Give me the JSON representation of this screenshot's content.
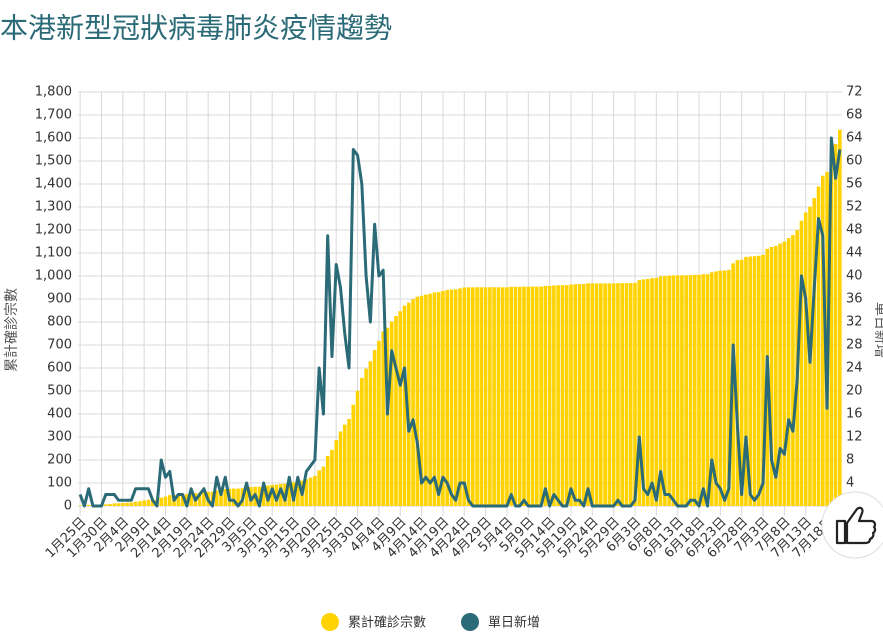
{
  "chart_data": {
    "type": "bar",
    "title": "本港新型冠狀病毒肺炎疫情趨勢",
    "ylabel": "累計確診宗數",
    "y2label": "單日新增",
    "grid": true,
    "legend": "bottom",
    "categories": [
      "1月25日",
      null,
      null,
      null,
      null,
      "1月30日",
      null,
      null,
      null,
      null,
      "2月4日",
      null,
      null,
      null,
      null,
      "2月9日",
      null,
      null,
      null,
      null,
      "2月14日",
      null,
      null,
      null,
      null,
      "2月19日",
      null,
      null,
      null,
      null,
      "2月24日",
      null,
      null,
      null,
      null,
      "2月29日",
      null,
      null,
      null,
      null,
      "3月5日",
      null,
      null,
      null,
      null,
      "3月10日",
      null,
      null,
      null,
      null,
      "3月15日",
      null,
      null,
      null,
      null,
      "3月20日",
      null,
      null,
      null,
      null,
      "3月25日",
      null,
      null,
      null,
      null,
      "3月30日",
      null,
      null,
      null,
      null,
      "4月4日",
      null,
      null,
      null,
      null,
      "4月9日",
      null,
      null,
      null,
      null,
      "4月14日",
      null,
      null,
      null,
      null,
      "4月19日",
      null,
      null,
      null,
      null,
      "4月24日",
      null,
      null,
      null,
      null,
      "4月29日",
      null,
      null,
      null,
      null,
      "5月4日",
      null,
      null,
      null,
      null,
      "5月9日",
      null,
      null,
      null,
      null,
      "5月14日",
      null,
      null,
      null,
      null,
      "5月19日",
      null,
      null,
      null,
      null,
      "5月24日",
      null,
      null,
      null,
      null,
      "5月29日",
      null,
      null,
      null,
      null,
      "6月3日",
      null,
      null,
      null,
      null,
      "6月8日",
      null,
      null,
      null,
      null,
      "6月13日",
      null,
      null,
      null,
      null,
      "6月18日",
      null,
      null,
      null,
      null,
      "6月23日",
      null,
      null,
      null,
      null,
      "6月28日",
      null,
      null,
      null,
      null,
      "7月3日",
      null,
      null,
      null,
      null,
      "7月8日",
      null,
      null,
      null,
      null,
      "7月13日",
      null,
      null,
      null,
      null,
      "7月18日",
      null,
      null,
      null
    ],
    "ylim": [
      0,
      1800
    ],
    "yticks": [
      0,
      100,
      200,
      300,
      400,
      500,
      600,
      700,
      800,
      900,
      {
        "value": 1000,
        "label": "1,000"
      },
      {
        "value": 1100,
        "label": "1,100"
      },
      {
        "value": 1200,
        "label": "1,200"
      },
      {
        "value": 1300,
        "label": "1,300"
      },
      {
        "value": 1400,
        "label": "1,400"
      },
      {
        "value": 1500,
        "label": "1,500"
      },
      {
        "value": 1600,
        "label": "1,600"
      },
      {
        "value": 1700,
        "label": "1,700"
      },
      {
        "value": 1800,
        "label": "1,800"
      }
    ],
    "y2lim": [
      0,
      72
    ],
    "y2ticks": [
      4,
      8,
      12,
      16,
      20,
      24,
      28,
      32,
      36,
      40,
      44,
      48,
      52,
      56,
      60,
      64,
      68,
      72
    ],
    "series": [
      {
        "name": "累計確診宗數",
        "type": "bar",
        "color": "#FFD200",
        "values": [
          2,
          2,
          5,
          5,
          5,
          5,
          7,
          9,
          11,
          12,
          13,
          14,
          15,
          18,
          21,
          24,
          27,
          28,
          28,
          36,
          41,
          47,
          48,
          50,
          52,
          52,
          55,
          56,
          58,
          61,
          62,
          62,
          67,
          69,
          74,
          75,
          76,
          76,
          77,
          81,
          82,
          84,
          84,
          88,
          89,
          92,
          93,
          96,
          97,
          102,
          103,
          108,
          110,
          116,
          123,
          131,
          155,
          171,
          218,
          244,
          286,
          324,
          354,
          378,
          440,
          501,
          557,
          597,
          629,
          678,
          718,
          759,
          775,
          802,
          826,
          847,
          871,
          884,
          899,
          910,
          914,
          919,
          923,
          928,
          930,
          935,
          939,
          941,
          942,
          946,
          950,
          951,
          951,
          951,
          951,
          951,
          951,
          951,
          951,
          951,
          951,
          953,
          953,
          953,
          954,
          954,
          954,
          954,
          954,
          957,
          957,
          959,
          960,
          960,
          960,
          963,
          964,
          965,
          965,
          968,
          968,
          968,
          968,
          968,
          968,
          968,
          969,
          969,
          969,
          969,
          970,
          982,
          985,
          987,
          991,
          992,
          998,
          1000,
          1002,
          1003,
          1003,
          1003,
          1003,
          1004,
          1005,
          1005,
          1008,
          1008,
          1016,
          1020,
          1023,
          1024,
          1027,
          1055,
          1069,
          1071,
          1083,
          1085,
          1086,
          1088,
          1092,
          1118,
          1126,
          1131,
          1141,
          1150,
          1165,
          1178,
          1200,
          1240,
          1276,
          1301,
          1339,
          1389,
          1436,
          1453,
          1517,
          1574,
          1636
        ]
      },
      {
        "name": "單日新增",
        "type": "line",
        "axis": "y2",
        "color": "#2B6A77",
        "values": [
          2,
          0,
          3,
          0,
          0,
          0,
          2,
          2,
          2,
          1,
          1,
          1,
          1,
          3,
          3,
          3,
          3,
          1,
          0,
          8,
          5,
          6,
          1,
          2,
          2,
          0,
          3,
          1,
          2,
          3,
          1,
          0,
          5,
          2,
          5,
          1,
          1,
          0,
          1,
          4,
          1,
          2,
          0,
          4,
          1,
          3,
          1,
          3,
          1,
          5,
          1,
          5,
          2,
          6,
          7,
          8,
          24,
          16,
          47,
          26,
          42,
          38,
          30,
          24,
          62,
          61,
          56,
          40,
          32,
          49,
          40,
          41,
          16,
          27,
          24,
          21,
          24,
          13,
          15,
          11,
          4,
          5,
          4,
          5,
          2,
          5,
          4,
          2,
          1,
          4,
          4,
          1,
          0,
          0,
          0,
          0,
          0,
          0,
          0,
          0,
          0,
          2,
          0,
          0,
          1,
          0,
          0,
          0,
          0,
          3,
          0,
          2,
          1,
          0,
          0,
          3,
          1,
          1,
          0,
          3,
          0,
          0,
          0,
          0,
          0,
          0,
          1,
          0,
          0,
          0,
          1,
          12,
          3,
          2,
          4,
          1,
          6,
          2,
          2,
          1,
          0,
          0,
          0,
          1,
          1,
          0,
          3,
          0,
          8,
          4,
          3,
          1,
          3,
          28,
          14,
          2,
          12,
          2,
          1,
          2,
          4,
          26,
          8,
          5,
          10,
          9,
          15,
          13,
          22,
          40,
          36,
          25,
          38,
          50,
          47,
          17,
          64,
          57,
          62
        ]
      }
    ]
  }
}
